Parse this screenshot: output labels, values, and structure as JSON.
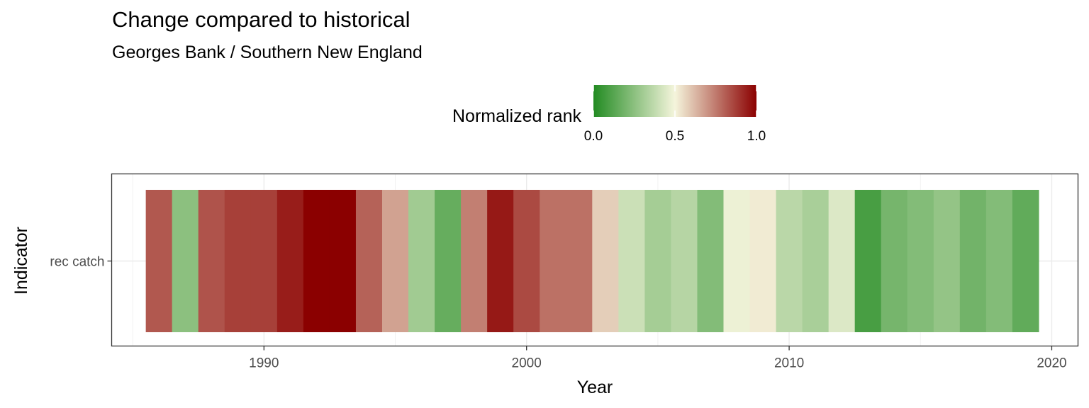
{
  "chart_data": {
    "type": "heatmap",
    "title": "Change compared to historical",
    "subtitle": "Georges Bank / Southern New England",
    "xlabel": "Year",
    "ylabel": "Indicator",
    "xlim": [
      1984.2,
      2021
    ],
    "x_ticks": [
      "1990",
      "2000",
      "2010",
      "2020"
    ],
    "y_categories": [
      "rec catch"
    ],
    "legend": {
      "title": "Normalized rank",
      "ticks": [
        "0.0",
        "0.5",
        "1.0"
      ],
      "position": "top",
      "colors": {
        "low": "#228b22",
        "mid": "#f5f5dc",
        "high": "#8b0000"
      }
    },
    "series": [
      {
        "indicator": "rec catch",
        "x": [
          1986,
          1987,
          1988,
          1989,
          1990,
          1991,
          1992,
          1993,
          1994,
          1995,
          1996,
          1997,
          1998,
          1999,
          2000,
          2001,
          2002,
          2003,
          2004,
          2005,
          2006,
          2007,
          2008,
          2009,
          2010,
          2011,
          2012,
          2013,
          2014,
          2015,
          2016,
          2017,
          2018,
          2019
        ],
        "values": [
          0.82,
          0.25,
          0.83,
          0.87,
          0.87,
          0.94,
          1.0,
          1.0,
          0.8,
          0.67,
          0.3,
          0.16,
          0.74,
          0.95,
          0.85,
          0.77,
          0.77,
          0.58,
          0.4,
          0.31,
          0.35,
          0.23,
          0.48,
          0.52,
          0.36,
          0.32,
          0.44,
          0.09,
          0.2,
          0.23,
          0.27,
          0.19,
          0.23,
          0.15
        ]
      }
    ]
  }
}
